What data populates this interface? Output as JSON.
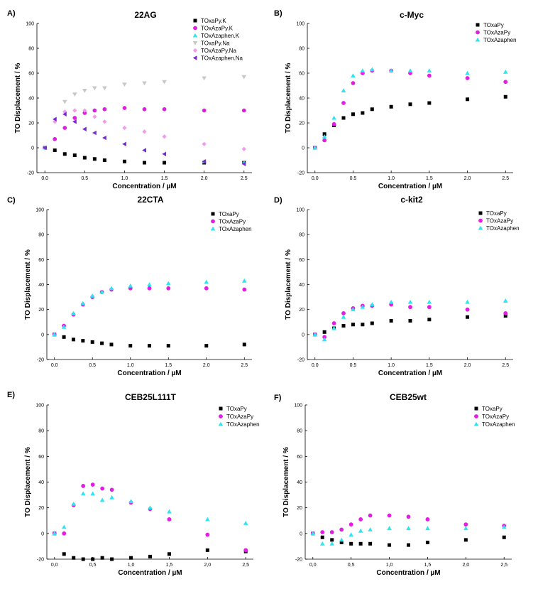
{
  "colors": {
    "black": "#000000",
    "magenta": "#e21ee2",
    "cyan": "#2ee4f0",
    "grey": "#c8c8c8",
    "violet": "#f09af0",
    "purple": "#7a2ad0"
  },
  "chart_data": [
    {
      "panel_label": "A)",
      "type": "scatter",
      "title": "22AG",
      "xlabel": "Concentration / µM",
      "ylabel": "TO Displacement / %",
      "xlim": [
        -0.1,
        2.6
      ],
      "ylim": [
        -20,
        100
      ],
      "xticks": [
        0.0,
        0.5,
        1.0,
        1.5,
        2.0,
        2.5
      ],
      "xtick_labels": [
        "0.0",
        "0.5",
        "1.0",
        "1.5",
        "2.0",
        "2.5"
      ],
      "yticks": [
        -20,
        0,
        20,
        40,
        60,
        80,
        100
      ],
      "ytick_labels": [
        "-20",
        "0",
        "20",
        "40",
        "60",
        "80",
        "100"
      ],
      "legend_position": "top-right",
      "series": [
        {
          "name": "TOxaPy.K",
          "color": "#000000",
          "marker": "square",
          "x": [
            0,
            0.125,
            0.25,
            0.375,
            0.5,
            0.625,
            0.75,
            1.0,
            1.25,
            1.5,
            2.0,
            2.5
          ],
          "y": [
            0,
            -2,
            -5,
            -6,
            -8,
            -9,
            -10,
            -11,
            -12,
            -12,
            -12,
            -12
          ]
        },
        {
          "name": "TOxAzaPy.K",
          "color": "#e21ee2",
          "marker": "circle",
          "x": [
            0,
            0.125,
            0.25,
            0.375,
            0.5,
            0.625,
            0.75,
            1.0,
            1.25,
            1.5,
            2.0,
            2.5
          ],
          "y": [
            0,
            7,
            16,
            24,
            28,
            30,
            31,
            32,
            31,
            31,
            30,
            30
          ]
        },
        {
          "name": "TOxAzaphen.K",
          "color": "#2ee4f0",
          "marker": "triangle-up",
          "x": [
            0,
            2.0,
            2.5
          ],
          "y": [
            0,
            -11,
            -12
          ]
        },
        {
          "name": "TOxaPy.Na",
          "color": "#c8c8c8",
          "marker": "triangle-down",
          "x": [
            0.25,
            0.375,
            0.5,
            0.625,
            0.75,
            1.0,
            1.25,
            1.5,
            2.0,
            2.5
          ],
          "y": [
            37,
            43,
            46,
            48,
            48,
            51,
            52,
            53,
            56,
            57
          ]
        },
        {
          "name": "TOxAzaPy.Na",
          "color": "#f09af0",
          "marker": "diamond",
          "x": [
            0.125,
            0.25,
            0.375,
            0.5,
            0.625,
            0.75,
            1.0,
            1.25,
            1.5,
            2.0,
            2.5
          ],
          "y": [
            21,
            29,
            30,
            30,
            25,
            21,
            16,
            13,
            9,
            3,
            -1
          ]
        },
        {
          "name": "TOxAzaphen.Na",
          "color": "#7a2ad0",
          "marker": "triangle-left",
          "x": [
            0,
            0.125,
            0.25,
            0.375,
            0.5,
            0.625,
            0.75,
            1.0,
            1.25,
            1.5,
            2.0,
            2.5
          ],
          "y": [
            0,
            23,
            27,
            21,
            15,
            12,
            8,
            3,
            -2,
            -5,
            -11,
            -13
          ]
        }
      ]
    },
    {
      "panel_label": "B)",
      "type": "scatter",
      "title": "c-Myc",
      "xlabel": "Concentration / µM",
      "ylabel": "TO Displacement / %",
      "xlim": [
        -0.1,
        2.6
      ],
      "ylim": [
        -20,
        100
      ],
      "xticks": [
        0.0,
        0.5,
        1.0,
        1.5,
        2.0,
        2.5
      ],
      "xtick_labels": [
        "0.0",
        "0.5",
        "1.0",
        "1.5",
        "2.0",
        "2.5"
      ],
      "yticks": [
        -20,
        0,
        20,
        40,
        60,
        80,
        100
      ],
      "ytick_labels": [
        "-20",
        "0",
        "20",
        "40",
        "60",
        "80",
        "100"
      ],
      "legend_position": "top-right",
      "series": [
        {
          "name": "TOxaPy",
          "color": "#000000",
          "marker": "square",
          "x": [
            0,
            0.125,
            0.25,
            0.375,
            0.5,
            0.625,
            0.75,
            1.0,
            1.25,
            1.5,
            2.0,
            2.5
          ],
          "y": [
            0,
            11,
            18,
            24,
            27,
            28,
            31,
            33,
            35,
            36,
            39,
            41
          ]
        },
        {
          "name": "TOxAzaPy",
          "color": "#e21ee2",
          "marker": "circle",
          "x": [
            0,
            0.125,
            0.25,
            0.375,
            0.5,
            0.625,
            0.75,
            1.0,
            1.25,
            1.5,
            2.0,
            2.5
          ],
          "y": [
            0,
            6,
            19,
            36,
            52,
            60,
            62,
            62,
            60,
            58,
            56,
            53
          ]
        },
        {
          "name": "TOxAzaphen",
          "color": "#2ee4f0",
          "marker": "triangle-up",
          "x": [
            0,
            0.125,
            0.25,
            0.375,
            0.5,
            0.625,
            0.75,
            1.0,
            1.25,
            1.5,
            2.0,
            2.5
          ],
          "y": [
            0,
            9,
            24,
            46,
            58,
            62,
            63,
            62,
            62,
            62,
            60,
            61
          ]
        }
      ]
    },
    {
      "panel_label": "C)",
      "type": "scatter",
      "title": "22CTA",
      "xlabel": "Concentration / µM",
      "ylabel": "TO Displacement / %",
      "xlim": [
        -0.1,
        2.6
      ],
      "ylim": [
        -20,
        100
      ],
      "xticks": [
        0.0,
        0.5,
        1.0,
        1.5,
        2.0,
        2.5
      ],
      "xtick_labels": [
        "0.0",
        "0.5",
        "1.0",
        "1.5",
        "2.0",
        "2.5"
      ],
      "yticks": [
        -20,
        0,
        20,
        40,
        60,
        80,
        100
      ],
      "ytick_labels": [
        "-20",
        "0",
        "20",
        "40",
        "60",
        "80",
        "100"
      ],
      "legend_position": "top-right",
      "series": [
        {
          "name": "TOxaPy",
          "color": "#000000",
          "marker": "square",
          "x": [
            0,
            0.125,
            0.25,
            0.375,
            0.5,
            0.625,
            0.75,
            1.0,
            1.25,
            1.5,
            2.0,
            2.5
          ],
          "y": [
            0,
            -2,
            -4,
            -5,
            -6,
            -7,
            -8,
            -9,
            -9,
            -9,
            -9,
            -8
          ]
        },
        {
          "name": "TOxAzaPy",
          "color": "#e21ee2",
          "marker": "circle",
          "x": [
            0,
            0.125,
            0.25,
            0.375,
            0.5,
            0.625,
            0.75,
            1.0,
            1.25,
            1.5,
            2.0,
            2.5
          ],
          "y": [
            0,
            7,
            16,
            24,
            30,
            34,
            36,
            37,
            37,
            37,
            37,
            36
          ]
        },
        {
          "name": "TOxAzaphen",
          "color": "#2ee4f0",
          "marker": "triangle-up",
          "x": [
            0,
            0.125,
            0.25,
            0.375,
            0.5,
            0.625,
            0.75,
            1.0,
            1.25,
            1.5,
            2.0,
            2.5
          ],
          "y": [
            0,
            6,
            17,
            25,
            31,
            34,
            37,
            39,
            40,
            41,
            42,
            43
          ]
        }
      ]
    },
    {
      "panel_label": "D)",
      "type": "scatter",
      "title": "c-kit2",
      "xlabel": "Concentration / µM",
      "ylabel": "TO Displacement / %",
      "xlim": [
        -0.1,
        2.6
      ],
      "ylim": [
        -20,
        100
      ],
      "xticks": [
        0.0,
        0.5,
        1.0,
        1.5,
        2.0,
        2.5
      ],
      "xtick_labels": [
        "0.0",
        "0.5",
        "1.0",
        "1.5",
        "2.0",
        "2.5"
      ],
      "yticks": [
        -20,
        0,
        20,
        40,
        60,
        80,
        100
      ],
      "ytick_labels": [
        "-20",
        "0",
        "20",
        "40",
        "60",
        "80",
        "100"
      ],
      "legend_position": "top-right",
      "series": [
        {
          "name": "TOxaPy",
          "color": "#000000",
          "marker": "square",
          "x": [
            0,
            0.125,
            0.25,
            0.375,
            0.5,
            0.625,
            0.75,
            1.0,
            1.25,
            1.5,
            2.0,
            2.5
          ],
          "y": [
            0,
            2,
            5,
            7,
            8,
            8,
            9,
            11,
            11,
            12,
            14,
            15
          ]
        },
        {
          "name": "TOxAzaPy",
          "color": "#e21ee2",
          "marker": "circle",
          "x": [
            0,
            0.125,
            0.25,
            0.375,
            0.5,
            0.625,
            0.75,
            1.0,
            1.25,
            1.5,
            2.0,
            2.5
          ],
          "y": [
            0,
            -2,
            9,
            17,
            21,
            23,
            23,
            24,
            22,
            22,
            20,
            17
          ]
        },
        {
          "name": "TOxAzaphen",
          "color": "#2ee4f0",
          "marker": "triangle-up",
          "x": [
            0,
            0.125,
            0.25,
            0.375,
            0.5,
            0.625,
            0.75,
            1.0,
            1.25,
            1.5,
            2.0,
            2.5
          ],
          "y": [
            0,
            -4,
            5,
            14,
            20,
            22,
            24,
            26,
            26,
            26,
            26,
            27
          ]
        }
      ]
    },
    {
      "panel_label": "E)",
      "type": "scatter",
      "title": "CEB25L111T",
      "xlabel": "Concentration / µM",
      "ylabel": "TO Displacement / %",
      "xlim": [
        -0.1,
        2.6
      ],
      "ylim": [
        -20,
        100
      ],
      "xticks": [
        0.0,
        0.5,
        1.0,
        1.5,
        2.0,
        2.5
      ],
      "xtick_labels": [
        "0,0",
        "0,5",
        "1,0",
        "1,5",
        "2,0",
        "2,5"
      ],
      "yticks": [
        -20,
        0,
        20,
        40,
        60,
        80,
        100
      ],
      "ytick_labels": [
        "-20",
        "0",
        "20",
        "40",
        "60",
        "80",
        "100"
      ],
      "legend_position": "top-right",
      "series": [
        {
          "name": "TOxaPy",
          "color": "#000000",
          "marker": "square",
          "x": [
            0,
            0.125,
            0.25,
            0.375,
            0.5,
            0.625,
            0.75,
            1.0,
            1.25,
            1.5,
            2.0,
            2.5
          ],
          "y": [
            0,
            -16,
            -19,
            -20,
            -20,
            -19,
            -20,
            -19,
            -18,
            -16,
            -13,
            -14
          ]
        },
        {
          "name": "TOxAzaPy",
          "color": "#e21ee2",
          "marker": "circle",
          "x": [
            0,
            0.125,
            0.25,
            0.375,
            0.5,
            0.625,
            0.75,
            1.0,
            1.25,
            1.5,
            2.0,
            2.5
          ],
          "y": [
            0,
            0,
            22,
            37,
            38,
            35,
            34,
            24,
            19,
            11,
            -1,
            -13
          ]
        },
        {
          "name": "TOxAzaphen",
          "color": "#2ee4f0",
          "marker": "triangle-up",
          "x": [
            0,
            0.125,
            0.25,
            0.375,
            0.5,
            0.625,
            0.75,
            1.0,
            1.25,
            1.5,
            2.0,
            2.5
          ],
          "y": [
            0,
            5,
            23,
            31,
            31,
            26,
            28,
            25,
            20,
            17,
            11,
            8
          ]
        }
      ]
    },
    {
      "panel_label": "F)",
      "type": "scatter",
      "title": "CEB25wt",
      "xlabel": "Concentration / µM",
      "ylabel": "TO Displacement / %",
      "xlim": [
        -0.1,
        2.6
      ],
      "ylim": [
        -20,
        100
      ],
      "xticks": [
        0.0,
        0.5,
        1.0,
        1.5,
        2.0,
        2.5
      ],
      "xtick_labels": [
        "0,0",
        "0,5",
        "1,0",
        "1,5",
        "2,0",
        "2,5"
      ],
      "yticks": [
        -20,
        0,
        20,
        40,
        60,
        80,
        100
      ],
      "ytick_labels": [
        "-20",
        "0",
        "20",
        "40",
        "60",
        "80",
        "100"
      ],
      "legend_position": "top-right",
      "series": [
        {
          "name": "TOxaPy",
          "color": "#000000",
          "marker": "square",
          "x": [
            0,
            0.125,
            0.25,
            0.375,
            0.5,
            0.625,
            0.75,
            1.0,
            1.25,
            1.5,
            2.0,
            2.5
          ],
          "y": [
            0,
            -3,
            -5,
            -7,
            -8,
            -8,
            -8,
            -9,
            -9,
            -7,
            -5,
            -3
          ]
        },
        {
          "name": "TOxAzaPy",
          "color": "#e21ee2",
          "marker": "circle",
          "x": [
            0,
            0.125,
            0.25,
            0.375,
            0.5,
            0.625,
            0.75,
            1.0,
            1.25,
            1.5,
            2.0,
            2.5
          ],
          "y": [
            0,
            1,
            1,
            3,
            7,
            11,
            14,
            14,
            13,
            11,
            7,
            6
          ]
        },
        {
          "name": "TOxAzaphen",
          "color": "#2ee4f0",
          "marker": "triangle-up",
          "x": [
            0,
            0.125,
            0.25,
            0.375,
            0.5,
            0.625,
            0.75,
            1.0,
            1.25,
            1.5,
            2.0,
            2.5
          ],
          "y": [
            0,
            -8,
            -8,
            -5,
            -1,
            2,
            3,
            4,
            4,
            4,
            4,
            5
          ]
        }
      ]
    }
  ]
}
